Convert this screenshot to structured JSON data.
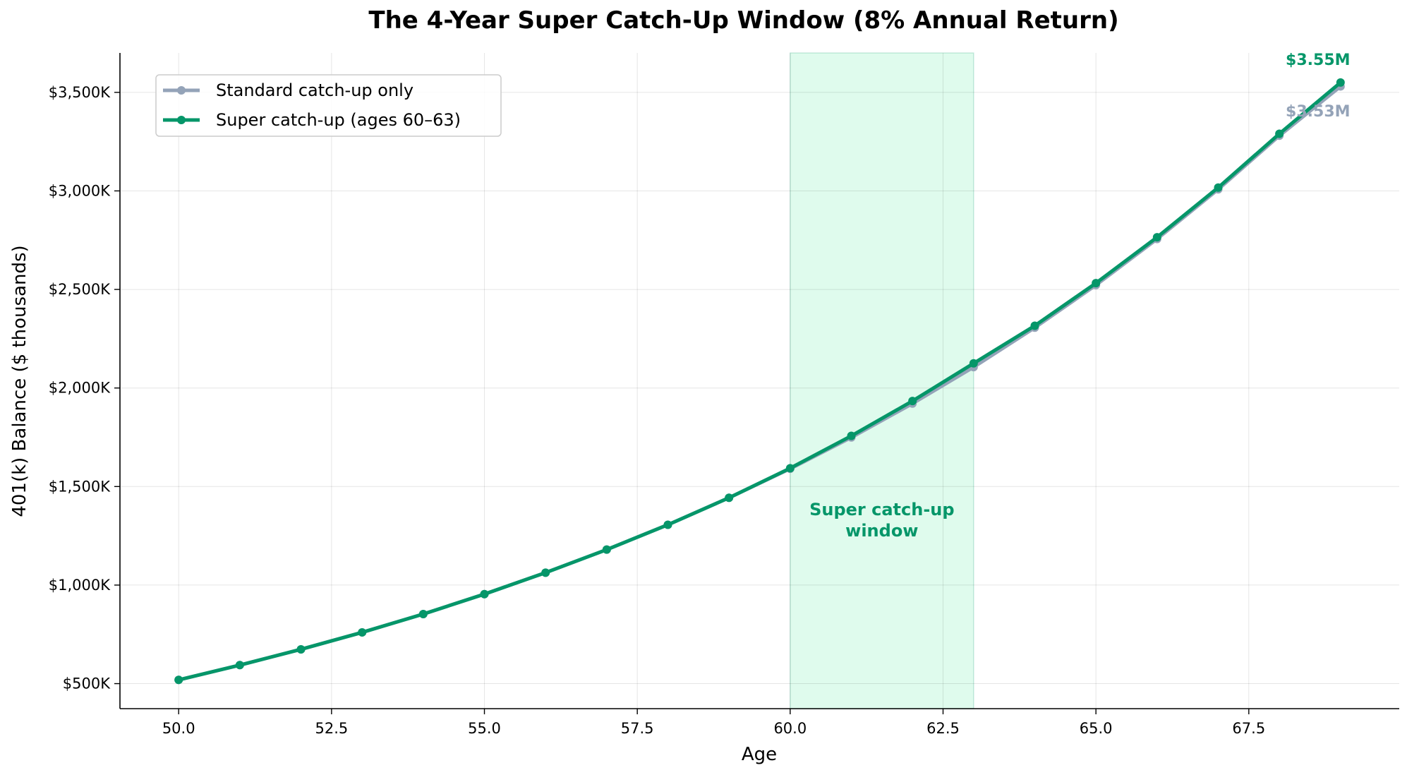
{
  "chart_data": {
    "type": "line",
    "title": "The 4-Year Super Catch-Up Window (8% Annual Return)",
    "xlabel": "Age",
    "ylabel": "401(k) Balance ($ thousands)",
    "xlim": [
      49.04,
      69.96
    ],
    "ylim": [
      373,
      3700
    ],
    "xticks": [
      50.0,
      52.5,
      55.0,
      57.5,
      60.0,
      62.5,
      65.0,
      67.5
    ],
    "xtick_labels": [
      "50.0",
      "52.5",
      "55.0",
      "57.5",
      "60.0",
      "62.5",
      "65.0",
      "67.5"
    ],
    "yticks": [
      500,
      1000,
      1500,
      2000,
      2500,
      3000,
      3500
    ],
    "ytick_labels": [
      "$500K",
      "$1,000K",
      "$1,500K",
      "$2,000K",
      "$2,500K",
      "$3,000K",
      "$3,500K"
    ],
    "grid": true,
    "legend_position": "top-left",
    "x": [
      50,
      51,
      52,
      53,
      54,
      55,
      56,
      57,
      58,
      59,
      60,
      61,
      62,
      63,
      64,
      65,
      66,
      67,
      68,
      69
    ],
    "series": [
      {
        "name": "Standard catch-up only",
        "color": "#94a3b8",
        "values": [
          519,
          594,
          674,
          760,
          853,
          954,
          1063,
          1180,
          1306,
          1443,
          1590,
          1749,
          1921,
          2106,
          2306,
          2522,
          2756,
          3008,
          3280,
          3530
        ]
      },
      {
        "name": "Super catch-up (ages 60–63)",
        "color": "#059669",
        "values": [
          519,
          594,
          674,
          760,
          853,
          954,
          1063,
          1180,
          1306,
          1443,
          1593,
          1757,
          1934,
          2125,
          2316,
          2532,
          2765,
          3017,
          3290,
          3550
        ]
      }
    ],
    "shaded_region": {
      "x_start": 60,
      "x_end": 63,
      "color": "#d1fae5",
      "label_line1": "Super catch-up",
      "label_line2": "window"
    },
    "annotations": [
      {
        "text": "$3.55M",
        "color": "#059669"
      },
      {
        "text": "$3.53M",
        "color": "#94a3b8"
      }
    ]
  }
}
